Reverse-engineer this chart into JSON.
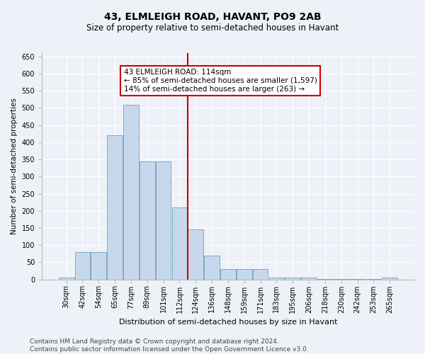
{
  "title": "43, ELMLEIGH ROAD, HAVANT, PO9 2AB",
  "subtitle": "Size of property relative to semi-detached houses in Havant",
  "xlabel": "Distribution of semi-detached houses by size in Havant",
  "ylabel": "Number of semi-detached properties",
  "categories": [
    "30sqm",
    "42sqm",
    "54sqm",
    "65sqm",
    "77sqm",
    "89sqm",
    "101sqm",
    "112sqm",
    "124sqm",
    "136sqm",
    "148sqm",
    "159sqm",
    "171sqm",
    "183sqm",
    "195sqm",
    "206sqm",
    "218sqm",
    "230sqm",
    "242sqm",
    "253sqm",
    "265sqm"
  ],
  "values": [
    5,
    80,
    80,
    420,
    510,
    345,
    345,
    210,
    145,
    70,
    30,
    30,
    30,
    5,
    5,
    5,
    1,
    1,
    1,
    1,
    5
  ],
  "bar_color": "#c8d8ec",
  "bar_edge_color": "#7aaac8",
  "vline_color": "#cc0000",
  "ylim": [
    0,
    660
  ],
  "yticks": [
    0,
    50,
    100,
    150,
    200,
    250,
    300,
    350,
    400,
    450,
    500,
    550,
    600,
    650
  ],
  "annotation_text": "43 ELMLEIGH ROAD: 114sqm\n← 85% of semi-detached houses are smaller (1,597)\n14% of semi-detached houses are larger (263) →",
  "annotation_box_color": "#ffffff",
  "annotation_box_edge": "#cc0000",
  "footer_line1": "Contains HM Land Registry data © Crown copyright and database right 2024.",
  "footer_line2": "Contains public sector information licensed under the Open Government Licence v3.0.",
  "title_fontsize": 10,
  "subtitle_fontsize": 8.5,
  "xlabel_fontsize": 8,
  "ylabel_fontsize": 7.5,
  "tick_fontsize": 7,
  "annot_fontsize": 7.5,
  "footer_fontsize": 6.5,
  "bg_color": "#eef2f8",
  "grid_color": "#ffffff"
}
